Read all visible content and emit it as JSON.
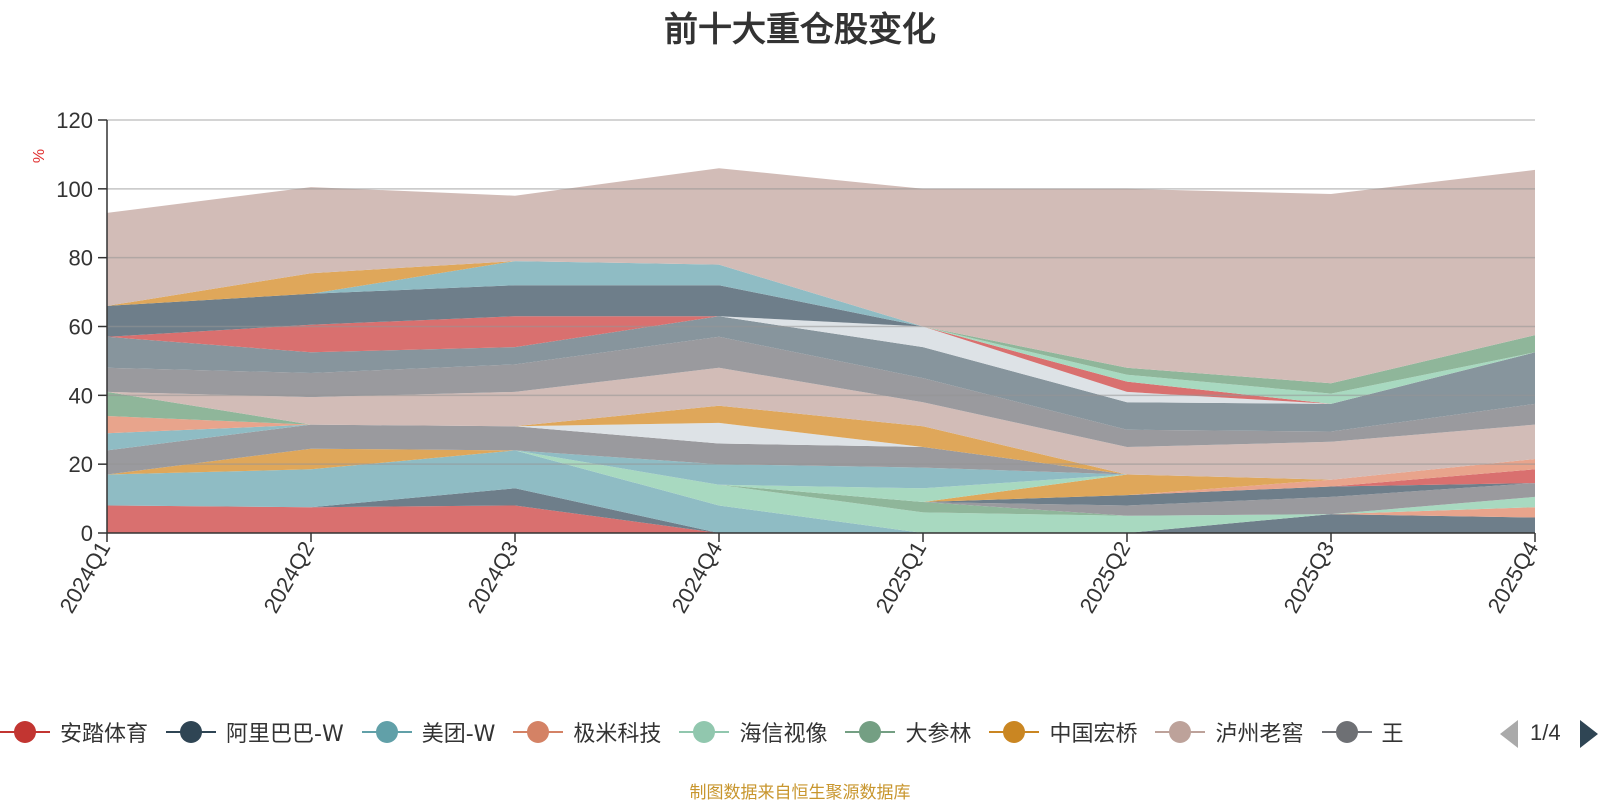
{
  "chart_data": {
    "type": "area",
    "title": "前十大重仓股变化",
    "ylabel": "%",
    "xlabel": "",
    "ylim": [
      0,
      120
    ],
    "yticks": [
      0,
      20,
      40,
      60,
      80,
      100,
      120
    ],
    "stacked": true,
    "grid": true,
    "legend_position": "bottom",
    "categories": [
      "2024Q1",
      "2024Q2",
      "2024Q3",
      "2024Q4",
      "2025Q1",
      "2025Q2",
      "2025Q3",
      "2025Q4"
    ],
    "layers": [
      {
        "color": "#d9706f",
        "values": [
          8,
          7.5,
          8,
          0,
          0,
          0,
          0,
          0
        ]
      },
      {
        "color": "#6e7e8a",
        "values": [
          0,
          0,
          5,
          0,
          0,
          0,
          5.5,
          4.5
        ]
      },
      {
        "color": "#8fbcc4",
        "values": [
          9,
          11,
          11,
          8,
          0,
          0,
          0,
          0
        ]
      },
      {
        "color": "#e8a48c",
        "values": [
          0,
          0,
          0,
          0,
          0,
          0,
          0,
          3
        ]
      },
      {
        "color": "#a8d9c0",
        "values": [
          0,
          0,
          0,
          6,
          6,
          5,
          0,
          3
        ]
      },
      {
        "color": "#8fb69a",
        "values": [
          0,
          0,
          0,
          0,
          3,
          0,
          0,
          0
        ]
      },
      {
        "color": "#9a9a9e",
        "values": [
          0,
          0,
          0,
          0,
          0,
          3,
          5,
          4
        ]
      },
      {
        "color": "#6e7e8a",
        "values": [
          0,
          0,
          0,
          0,
          0,
          3,
          3,
          0
        ]
      },
      {
        "color": "#d9706f",
        "values": [
          0,
          0,
          0,
          0,
          0,
          0,
          0,
          4
        ]
      },
      {
        "color": "#e8a48c",
        "values": [
          0,
          0,
          0,
          0,
          0,
          0,
          2,
          3
        ]
      },
      {
        "color": "#dfa75a",
        "values": [
          0,
          6,
          0,
          0,
          0,
          6,
          0,
          0
        ]
      },
      {
        "color": "#a8d9c0",
        "values": [
          0,
          0,
          0,
          0,
          4,
          0,
          0,
          0
        ]
      },
      {
        "color": "#8fbcc4",
        "values": [
          0,
          0,
          0,
          6,
          6,
          0,
          0,
          0
        ]
      },
      {
        "color": "#9a9a9e",
        "values": [
          7,
          7,
          7,
          6,
          6,
          0,
          0,
          0
        ]
      },
      {
        "color": "#dde2e6",
        "values": [
          0,
          0,
          0,
          6,
          0,
          0,
          0,
          0
        ]
      },
      {
        "color": "#dfa75a",
        "values": [
          0,
          0,
          0,
          5,
          6,
          0,
          0,
          0
        ]
      },
      {
        "color": "#8fbcc4",
        "values": [
          5,
          0,
          0,
          0,
          0,
          0,
          0,
          0
        ]
      },
      {
        "color": "#e8a48c",
        "values": [
          5,
          0,
          0,
          0,
          0,
          0,
          0,
          0
        ]
      },
      {
        "color": "#8fb69a",
        "values": [
          7,
          0,
          0,
          0,
          0,
          0,
          0,
          0
        ]
      },
      {
        "color": "#d2bcb7",
        "values": [
          0,
          8,
          10,
          11,
          7,
          8,
          11,
          10
        ]
      },
      {
        "color": "#9a9a9e",
        "values": [
          7,
          7,
          8,
          9,
          7,
          5,
          3,
          6
        ]
      },
      {
        "color": "#87959d",
        "values": [
          9,
          6,
          5,
          6,
          9,
          8,
          8,
          15
        ]
      },
      {
        "color": "#dde2e6",
        "values": [
          0,
          0,
          0,
          0,
          6,
          3,
          0,
          0
        ]
      },
      {
        "color": "#d9706f",
        "values": [
          0,
          8,
          9,
          0,
          0,
          3,
          0,
          0
        ]
      },
      {
        "color": "#a8d9c0",
        "values": [
          0,
          0,
          0,
          0,
          0,
          2,
          3,
          0
        ]
      },
      {
        "color": "#8fb69a",
        "values": [
          0,
          0,
          0,
          0,
          0,
          2,
          3,
          5
        ]
      },
      {
        "color": "#6e7e8a",
        "values": [
          9,
          9,
          9,
          9,
          0,
          0,
          0,
          0
        ]
      },
      {
        "color": "#8fbcc4",
        "values": [
          0,
          0,
          7,
          6,
          0,
          0,
          0,
          0
        ]
      },
      {
        "color": "#dfa75a",
        "values": [
          0,
          6,
          0,
          0,
          0,
          0,
          0,
          0
        ]
      },
      {
        "color": "#d2bcb7",
        "values": [
          27,
          25,
          19,
          28,
          40,
          52,
          55,
          48
        ]
      }
    ],
    "series": [
      {
        "name": "安踏体育",
        "color": "#c23531"
      },
      {
        "name": "阿里巴巴-W",
        "color": "#2f4554"
      },
      {
        "name": "美团-W",
        "color": "#61a0a8"
      },
      {
        "name": "极米科技",
        "color": "#d48265"
      },
      {
        "name": "海信视像",
        "color": "#91c7ae"
      },
      {
        "name": "大参林",
        "color": "#749f83"
      },
      {
        "name": "中国宏桥",
        "color": "#ca8622"
      },
      {
        "name": "泸州老窖",
        "color": "#bda29a"
      },
      {
        "name": "王",
        "color": "#6e7074"
      }
    ]
  },
  "legend": {
    "page_indicator": "1/4"
  },
  "source_note": "制图数据来自恒生聚源数据库"
}
